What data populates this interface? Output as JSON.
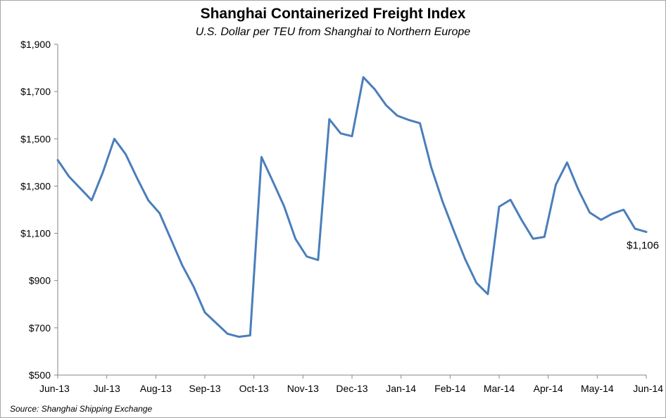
{
  "colors": {
    "line": "#4a7ebb",
    "axis": "#868686",
    "border": "#a6a6a6"
  },
  "chart_data": {
    "type": "line",
    "title": "Shanghai Containerized Freight Index",
    "subtitle": "U.S. Dollar per TEU from Shanghai to Northern Europe",
    "xlabel": "",
    "ylabel": "",
    "ylim": [
      500,
      1900
    ],
    "yticks": [
      500,
      700,
      900,
      1100,
      1300,
      1500,
      1700,
      1900
    ],
    "ytick_labels": [
      "$500",
      "$700",
      "$900",
      "$1,100",
      "$1,300",
      "$1,500",
      "$1,700",
      "$1,900"
    ],
    "x_tick_labels": [
      "Jun-13",
      "Jul-13",
      "Aug-13",
      "Sep-13",
      "Oct-13",
      "Nov-13",
      "Dec-13",
      "Jan-14",
      "Feb-14",
      "Mar-14",
      "Apr-14",
      "May-14",
      "Jun-14"
    ],
    "grid": false,
    "legend": "none",
    "series": [
      {
        "values": [
          1410,
          1340,
          1290,
          1240,
          1360,
          1500,
          1435,
          1335,
          1240,
          1185,
          1075,
          965,
          875,
          765,
          720,
          675,
          662,
          668,
          1423,
          1320,
          1215,
          1077,
          1002,
          987,
          1583,
          1523,
          1511,
          1761,
          1710,
          1643,
          1598,
          1580,
          1566,
          1380,
          1235,
          1110,
          990,
          890,
          843,
          1213,
          1242,
          1155,
          1077,
          1085,
          1305,
          1400,
          1285,
          1188,
          1157,
          1183,
          1200,
          1120,
          1106
        ]
      }
    ],
    "end_label": "$1,106"
  },
  "source": "Source: Shanghai Shipping Exchange"
}
